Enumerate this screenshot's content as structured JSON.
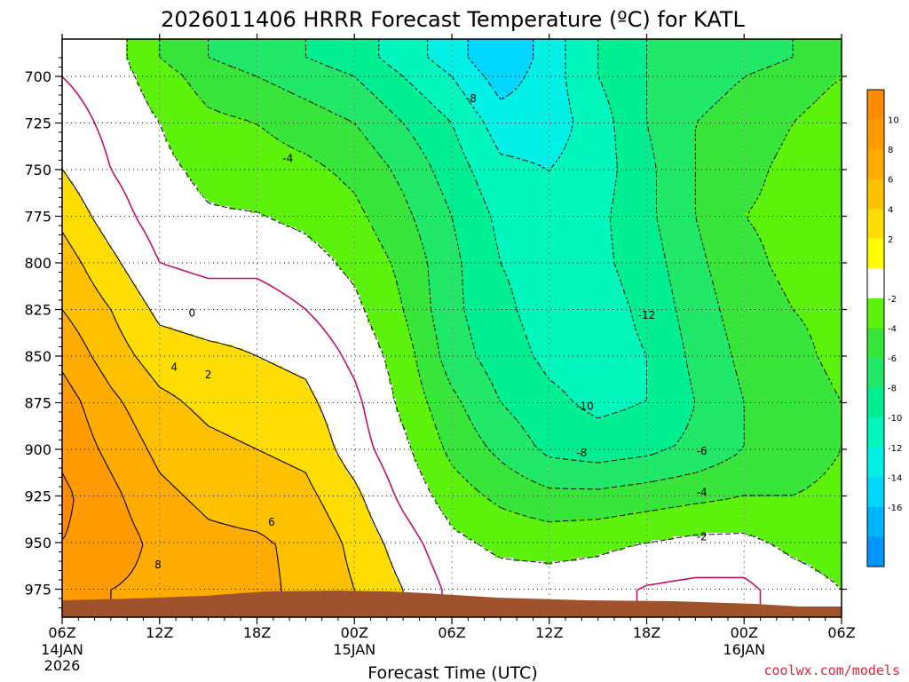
{
  "chart_data": {
    "type": "heatmap",
    "title": "2026011406 HRRR Forecast Temperature (ºC) for KATL",
    "xlabel": "Forecast Time (UTC)",
    "ylabel": "",
    "y_axis": {
      "scale": "pressure",
      "inverted": true,
      "range": [
        990,
        680
      ],
      "ticks": [
        "700",
        "725",
        "750",
        "775",
        "800",
        "825",
        "850",
        "875",
        "900",
        "925",
        "950",
        "975"
      ]
    },
    "x_axis": {
      "range_hours": [
        0,
        48
      ],
      "ticks": [
        {
          "hour": 0,
          "label": "06Z",
          "sub": "14JAN",
          "sub2": "2026"
        },
        {
          "hour": 6,
          "label": "12Z"
        },
        {
          "hour": 12,
          "label": "18Z"
        },
        {
          "hour": 18,
          "label": "00Z",
          "sub": "15JAN"
        },
        {
          "hour": 24,
          "label": "06Z"
        },
        {
          "hour": 30,
          "label": "12Z"
        },
        {
          "hour": 36,
          "label": "18Z"
        },
        {
          "hour": 42,
          "label": "00Z",
          "sub": "16JAN"
        },
        {
          "hour": 48,
          "label": "06Z"
        }
      ]
    },
    "grid": true,
    "colorbar": {
      "placement": "right",
      "bands": [
        {
          "upper": 12,
          "color": "#ff8c00"
        },
        {
          "upper": 10,
          "color": "#ff9a00"
        },
        {
          "upper": 8,
          "color": "#ffab00"
        },
        {
          "upper": 6,
          "color": "#ffc000"
        },
        {
          "upper": 4,
          "color": "#ffdd00"
        },
        {
          "upper": 2,
          "color": "#ffff00"
        },
        {
          "upper": 0,
          "color": "#ffffff"
        },
        {
          "upper": -2,
          "color": "#5df20c"
        },
        {
          "upper": -4,
          "color": "#38e53a"
        },
        {
          "upper": -6,
          "color": "#22e86a"
        },
        {
          "upper": -8,
          "color": "#00ee92"
        },
        {
          "upper": -10,
          "color": "#00f6bd"
        },
        {
          "upper": -12,
          "color": "#00f0e6"
        },
        {
          "upper": -14,
          "color": "#00d6ff"
        },
        {
          "upper": -16,
          "color": "#00b4ff"
        },
        {
          "upper": -18,
          "color": "#0095ff"
        }
      ],
      "labels": [
        "10",
        "8",
        "6",
        "4",
        "2",
        "-2",
        "-4",
        "-6",
        "-8",
        "-10",
        "-12",
        "-14",
        "-16"
      ]
    },
    "temperature_grid": {
      "hours": [
        0,
        3,
        6,
        9,
        12,
        15,
        18,
        21,
        24,
        27,
        30,
        33,
        36,
        39,
        42,
        45,
        48
      ],
      "levels_mb": [
        690,
        700,
        725,
        750,
        775,
        800,
        825,
        850,
        875,
        900,
        925,
        950,
        975
      ],
      "values": [
        [
          -0.5,
          -1,
          -4,
          -6,
          -7,
          -8,
          -9,
          -11,
          -13,
          -16,
          -13,
          -10,
          -8,
          -8,
          -7,
          -6,
          -6
        ],
        [
          0,
          -1,
          -3,
          -5,
          -6,
          -7,
          -8,
          -10,
          -12,
          -15,
          -13,
          -10,
          -8,
          -7,
          -6,
          -5,
          -4
        ],
        [
          1,
          -0.5,
          -2,
          -3.5,
          -4,
          -5,
          -6,
          -8,
          -10,
          -13,
          -13,
          -11,
          -8,
          -6,
          -5,
          -4,
          -3
        ],
        [
          2,
          0,
          -1.5,
          -2.5,
          -3,
          -3.5,
          -4.5,
          -6.5,
          -9,
          -11.5,
          -12,
          -11,
          -8.5,
          -6,
          -4.5,
          -3.5,
          -3
        ],
        [
          3.5,
          1,
          -1,
          -1.8,
          -1.9,
          -2.5,
          -3.5,
          -5.5,
          -8,
          -10.5,
          -11.5,
          -10.5,
          -8.5,
          -6,
          -4,
          -3.5,
          -3
        ],
        [
          5,
          2.5,
          0,
          -0.5,
          -0.5,
          -1.2,
          -2.5,
          -4.5,
          -7.5,
          -10,
          -11,
          -10.5,
          -9,
          -6.5,
          -4.5,
          -3.5,
          -3
        ],
        [
          6,
          4,
          1.5,
          1,
          1,
          0,
          -1.5,
          -4,
          -7.5,
          -9.5,
          -11,
          -11,
          -9.5,
          -7,
          -5,
          -4,
          -3.5
        ],
        [
          7.5,
          5,
          3,
          2.5,
          2,
          1.5,
          -0.5,
          -3,
          -7,
          -9,
          -10.5,
          -11,
          -10,
          -7.5,
          -5.5,
          -4.5,
          -3.5
        ],
        [
          9,
          6.5,
          4.5,
          3.5,
          3,
          2.5,
          0.5,
          -2.5,
          -5.5,
          -8,
          -9.5,
          -10.5,
          -10,
          -8,
          -6,
          -5,
          -4
        ],
        [
          9.5,
          7.5,
          5.5,
          4.5,
          4,
          3.5,
          1,
          -1.5,
          -4.5,
          -6.5,
          -8.5,
          -9,
          -8.5,
          -7.5,
          -6,
          -5,
          -4
        ],
        [
          10.5,
          8.5,
          6.5,
          5.5,
          5,
          4.5,
          2.5,
          -0.5,
          -3,
          -4.5,
          -5.5,
          -5.5,
          -5,
          -4.5,
          -4,
          -4,
          -3.5
        ],
        [
          10,
          9,
          7.5,
          6.5,
          6.3,
          5.5,
          3.5,
          1,
          -1.5,
          -2.5,
          -2.8,
          -2.5,
          -2,
          -1.5,
          -1.5,
          -2.5,
          -3
        ],
        [
          8,
          8,
          7.5,
          7,
          6.5,
          5.5,
          4,
          2,
          -0.5,
          -1,
          -1,
          -0.8,
          0.2,
          0.5,
          0.5,
          -1,
          -2
        ]
      ]
    },
    "contour_labels": [
      {
        "text": "-8",
        "hour": 25.2,
        "p": 712
      },
      {
        "text": "-4",
        "hour": 13.9,
        "p": 744
      },
      {
        "text": "0",
        "hour": 8.0,
        "p": 827
      },
      {
        "text": "4",
        "hour": 6.9,
        "p": 856
      },
      {
        "text": "2",
        "hour": 9.0,
        "p": 860
      },
      {
        "text": "-12",
        "hour": 36.0,
        "p": 828
      },
      {
        "text": "-10",
        "hour": 32.2,
        "p": 877
      },
      {
        "text": "-8",
        "hour": 32.0,
        "p": 902
      },
      {
        "text": "-6",
        "hour": 39.4,
        "p": 901
      },
      {
        "text": "-4",
        "hour": 39.4,
        "p": 923
      },
      {
        "text": "-2",
        "hour": 39.4,
        "p": 947
      },
      {
        "text": "6",
        "hour": 12.9,
        "p": 939
      },
      {
        "text": "8",
        "hour": 5.9,
        "p": 962
      }
    ],
    "terrain_color": "#a0522d"
  },
  "credit": "coolwx.com/models",
  "credit_color": "#e3243b"
}
